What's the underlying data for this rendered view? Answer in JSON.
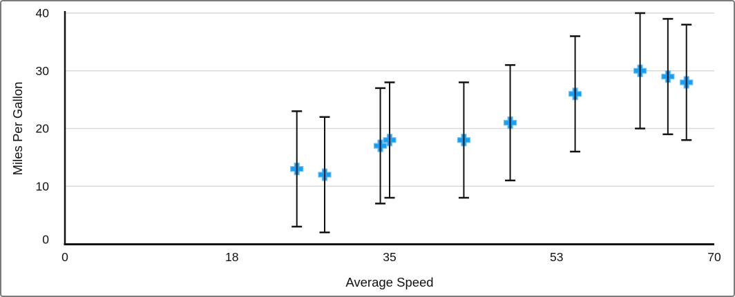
{
  "window": {
    "background_color": "#ffffff",
    "border_color": "#7b7b7b"
  },
  "chart_data": {
    "type": "scatter",
    "title": "",
    "xlabel": "Average Speed",
    "ylabel": "Miles Per Gallon",
    "xlim": [
      0,
      70
    ],
    "ylim": [
      0,
      40
    ],
    "x_tick_values": [
      0,
      18,
      35,
      53,
      70
    ],
    "x_tick_labels": [
      "0",
      "18",
      "35",
      "53",
      "70"
    ],
    "y_tick_values": [
      0,
      10,
      20,
      30,
      40
    ],
    "y_tick_labels": [
      "0",
      "10",
      "20",
      "30",
      "40"
    ],
    "grid": {
      "horizontal": true,
      "vertical": false,
      "color": "#d9d9d9"
    },
    "legend_position": "none",
    "axis_color": "#111111",
    "text_color": "#111111",
    "marker": {
      "shape": "plus",
      "color": "#189ef2",
      "halo_color": "#6fc0f7"
    },
    "error_bars": {
      "mode": "fixed",
      "value": 10,
      "direction": "both",
      "color": "#111111"
    },
    "series": [
      {
        "points": [
          {
            "x": 25,
            "y": 13,
            "y_error": 10
          },
          {
            "x": 28,
            "y": 12,
            "y_error": 10
          },
          {
            "x": 34,
            "y": 17,
            "y_error": 10
          },
          {
            "x": 35,
            "y": 18,
            "y_error": 10
          },
          {
            "x": 43,
            "y": 18,
            "y_error": 10
          },
          {
            "x": 48,
            "y": 21,
            "y_error": 10
          },
          {
            "x": 55,
            "y": 26,
            "y_error": 10
          },
          {
            "x": 62,
            "y": 30,
            "y_error": 10
          },
          {
            "x": 65,
            "y": 29,
            "y_error": 10
          },
          {
            "x": 67,
            "y": 28,
            "y_error": 10
          }
        ]
      }
    ]
  }
}
